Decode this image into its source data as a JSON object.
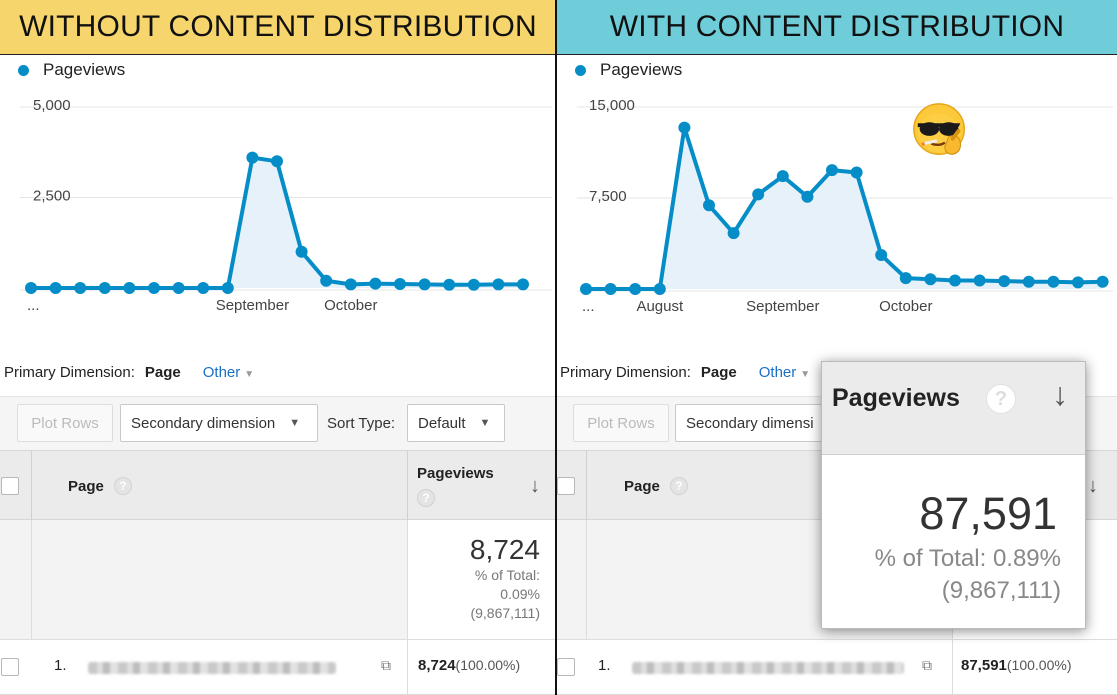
{
  "left": {
    "banner": "WITHOUT CONTENT DISTRIBUTION",
    "legend": "Pageviews",
    "chart_data": {
      "type": "area",
      "title": "",
      "series": [
        {
          "name": "Pageviews",
          "values": [
            0,
            0,
            0,
            0,
            0,
            0,
            0,
            0,
            0,
            3600,
            3500,
            1000,
            200,
            100,
            120,
            110,
            100,
            90,
            90,
            100,
            100
          ]
        }
      ],
      "ylim": [
        0,
        5000
      ],
      "yticks": [
        "5,000",
        "2,500"
      ],
      "xticks": [
        {
          "label": "...",
          "index": 0
        },
        {
          "label": "September",
          "index": 9
        },
        {
          "label": "October",
          "index": 13
        }
      ],
      "grid": true
    },
    "primary_dimension_label": "Primary Dimension:",
    "primary_dimension_value": "Page",
    "other_label": "Other",
    "plot_rows": "Plot Rows",
    "secondary_dimension": "Secondary dimension",
    "sort_type_label": "Sort Type:",
    "sort_type_value": "Default",
    "col_page": "Page",
    "col_pageviews": "Pageviews",
    "help": "?",
    "total_value": "8,724",
    "total_pct_line1": "% of Total:",
    "total_pct_line2": "0.09%",
    "total_all": "(9,867,111)",
    "row_num": "1.",
    "row_value": "8,724",
    "row_pct": "(100.00%)"
  },
  "right": {
    "banner": "WITH CONTENT DISTRIBUTION",
    "legend": "Pageviews",
    "chart_data": {
      "type": "area",
      "title": "",
      "series": [
        {
          "name": "Pageviews",
          "values": [
            0,
            0,
            0,
            0,
            13300,
            6900,
            4600,
            7800,
            9300,
            7600,
            9800,
            9600,
            2800,
            900,
            800,
            700,
            700,
            650,
            600,
            600,
            550,
            600
          ]
        }
      ],
      "ylim": [
        0,
        15000
      ],
      "yticks": [
        "15,000",
        "7,500"
      ],
      "xticks": [
        {
          "label": "...",
          "index": 0
        },
        {
          "label": "August",
          "index": 3
        },
        {
          "label": "September",
          "index": 8
        },
        {
          "label": "October",
          "index": 13
        }
      ],
      "grid": true
    },
    "primary_dimension_label": "Primary Dimension:",
    "primary_dimension_value": "Page",
    "other_label": "Other",
    "plot_rows": "Plot Rows",
    "secondary_dimension": "Secondary dimensi",
    "col_page": "Page",
    "help": "?",
    "row_num": "1.",
    "row_value": "87,591",
    "row_pct": "(100.00%)"
  },
  "callout": {
    "title": "Pageviews",
    "help": "?",
    "value": "87,591",
    "pct": "% of Total: 0.89%",
    "total": "(9,867,111)"
  },
  "icons": {
    "sort": "↓",
    "external": "⧉",
    "dropdown": "▼",
    "emoji": "smoking-cool-emoji"
  },
  "colors": {
    "left_banner": "#f6d56d",
    "right_banner": "#6fcdd9",
    "series_line": "#058dc7",
    "series_fill": "#e6f1fa",
    "link": "#1a6fc9"
  }
}
